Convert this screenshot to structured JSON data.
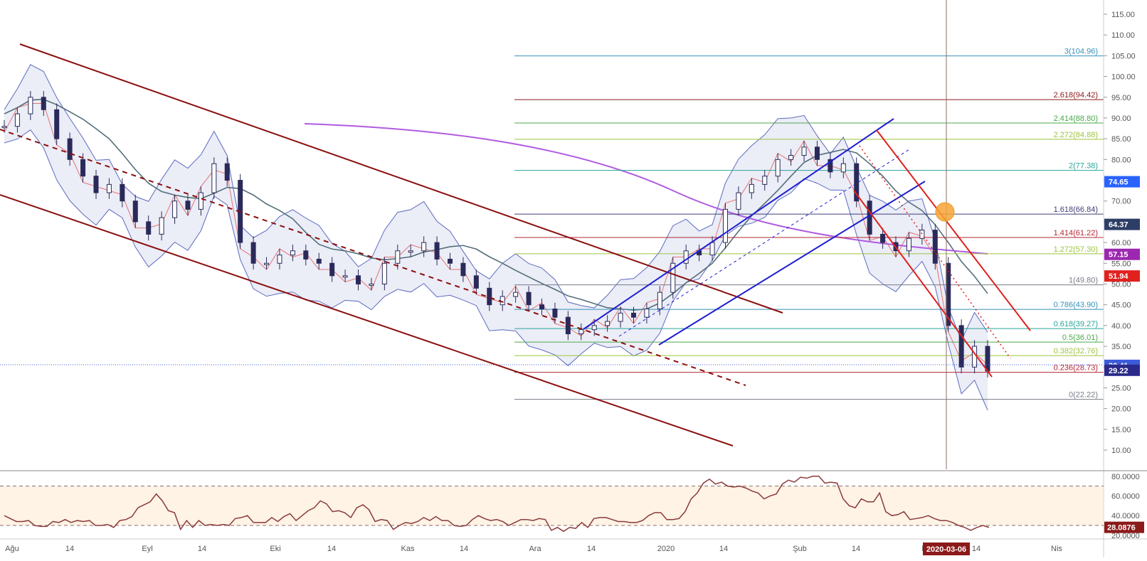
{
  "chart_data": [
    {
      "type": "candlestick",
      "x_labels": [
        "Ağu",
        "14",
        "Eyl",
        "14",
        "Eki",
        "14",
        "Kas",
        "14",
        "Ara",
        "14",
        "2020",
        "14",
        "Şub",
        "14",
        "M",
        "14",
        "Nis"
      ],
      "y_ticks": [
        10,
        15,
        20,
        25,
        30,
        35,
        40,
        45,
        50,
        55,
        60,
        65,
        70,
        75,
        80,
        85,
        90,
        95,
        100,
        105,
        110,
        115
      ],
      "y_tick_labels": [
        "10.00",
        "15.00",
        "20.00",
        "25.00",
        "30.00",
        "35.00",
        "40.00",
        "45.00",
        "50.00",
        "55.00",
        "60.00",
        "65.00",
        "70.00",
        "75.00",
        "80.00",
        "85.00",
        "90.00",
        "95.00",
        "100.00",
        "105.00",
        "110.00",
        "115.00"
      ],
      "ylim": [
        7.5,
        117.5
      ],
      "close_series": [
        88,
        91,
        95,
        92,
        85,
        80,
        76,
        72,
        74,
        70,
        65,
        62,
        66,
        70,
        68,
        72,
        79,
        75,
        60,
        55,
        55,
        57,
        58,
        56,
        55,
        52,
        52,
        50,
        50,
        55,
        58,
        58,
        60,
        56,
        55,
        52,
        49,
        45,
        47,
        48,
        45,
        44,
        42,
        38,
        39,
        40,
        41,
        43,
        42,
        44,
        48,
        55,
        58,
        57,
        60,
        68,
        72,
        74,
        76,
        80,
        81,
        83,
        80,
        77,
        79,
        70,
        62,
        60,
        58,
        61,
        63,
        55,
        40,
        30,
        35,
        29
      ],
      "fibonacci_levels": [
        {
          "ratio": "0",
          "price": 22.22,
          "label": "0(22.22)",
          "color": "#787b86"
        },
        {
          "ratio": "0.236",
          "price": 28.73,
          "label": "0.236(28.73)",
          "color": "#b22833"
        },
        {
          "ratio": "0.382",
          "price": 32.76,
          "label": "0.382(32.76)",
          "color": "#9cc43c"
        },
        {
          "ratio": "0.5",
          "price": 36.01,
          "label": "0.5(36.01)",
          "color": "#4aa84a"
        },
        {
          "ratio": "0.618",
          "price": 39.27,
          "label": "0.618(39.27)",
          "color": "#26a69a"
        },
        {
          "ratio": "0.786",
          "price": 43.9,
          "label": "0.786(43.90)",
          "color": "#3591b8"
        },
        {
          "ratio": "1",
          "price": 49.8,
          "label": "1(49.80)",
          "color": "#787b86"
        },
        {
          "ratio": "1.272",
          "price": 57.3,
          "label": "1.272(57.30)",
          "color": "#9cc43c"
        },
        {
          "ratio": "1.414",
          "price": 61.22,
          "label": "1.414(61.22)",
          "color": "#b22833"
        },
        {
          "ratio": "1.618",
          "price": 66.84,
          "label": "1.618(66.84)",
          "color": "#3f3f7a"
        },
        {
          "ratio": "2",
          "price": 77.38,
          "label": "2(77.38)",
          "color": "#26a69a"
        },
        {
          "ratio": "2.272",
          "price": 84.88,
          "label": "2.272(84.88)",
          "color": "#9cc43c"
        },
        {
          "ratio": "2.414",
          "price": 88.8,
          "label": "2.414(88.80)",
          "color": "#4aa84a"
        },
        {
          "ratio": "2.618",
          "price": 94.42,
          "label": "2.618(94.42)",
          "color": "#8b1a1a"
        },
        {
          "ratio": "3",
          "price": 104.96,
          "label": "3(104.96)",
          "color": "#3591b8"
        }
      ],
      "price_tags": [
        {
          "value": "74.65",
          "color": "#2962ff"
        },
        {
          "value": "64.37",
          "color": "#2d3d66"
        },
        {
          "value": "57.15",
          "color": "#9c27b0"
        },
        {
          "value": "51.94",
          "color": "#e0211e"
        },
        {
          "value": "30.41",
          "color": "#3b5bdb"
        },
        {
          "value": "29.22",
          "color": "#2a2a8a"
        }
      ],
      "crosshair_date": "2020-03-06"
    },
    {
      "type": "line",
      "name": "RSI",
      "y_ticks": [
        20,
        40,
        60,
        80
      ],
      "y_tick_labels": [
        "20.0000",
        "40.0000",
        "60.0000",
        "80.0000"
      ],
      "ylim": [
        17,
        82
      ],
      "bands": [
        30,
        70
      ],
      "values": [
        40,
        37,
        34,
        34,
        35,
        30,
        29,
        29,
        34,
        33,
        36,
        33,
        35,
        34,
        35,
        30,
        30,
        31,
        28,
        35,
        36,
        39,
        48,
        51,
        54,
        62,
        55,
        45,
        43,
        26,
        35,
        28,
        35,
        30,
        31,
        30,
        31,
        30,
        37,
        38,
        40,
        33,
        33,
        33,
        38,
        34,
        39,
        42,
        35,
        40,
        45,
        48,
        55,
        52,
        44,
        45,
        43,
        38,
        48,
        51,
        46,
        34,
        36,
        35,
        26,
        30,
        33,
        32,
        34,
        38,
        35,
        39,
        35,
        35,
        30,
        29,
        30,
        36,
        40,
        37,
        35,
        36,
        34,
        30,
        33,
        36,
        36,
        35,
        37,
        36,
        25,
        28,
        24,
        28,
        27,
        33,
        28,
        37,
        38,
        38,
        36,
        34,
        34,
        33,
        33,
        35,
        40,
        43,
        43,
        36,
        36,
        37,
        44,
        57,
        63,
        73,
        77,
        72,
        74,
        70,
        69,
        70,
        68,
        65,
        63,
        57,
        60,
        62,
        72,
        76,
        74,
        79,
        78,
        80,
        80,
        73,
        74,
        73,
        57,
        50,
        48,
        57,
        54,
        54,
        63,
        44,
        40,
        41,
        44,
        36,
        37,
        38,
        40,
        37,
        35,
        35,
        33,
        30,
        28,
        25,
        28,
        30,
        28
      ],
      "last_value": "28.0876"
    }
  ]
}
